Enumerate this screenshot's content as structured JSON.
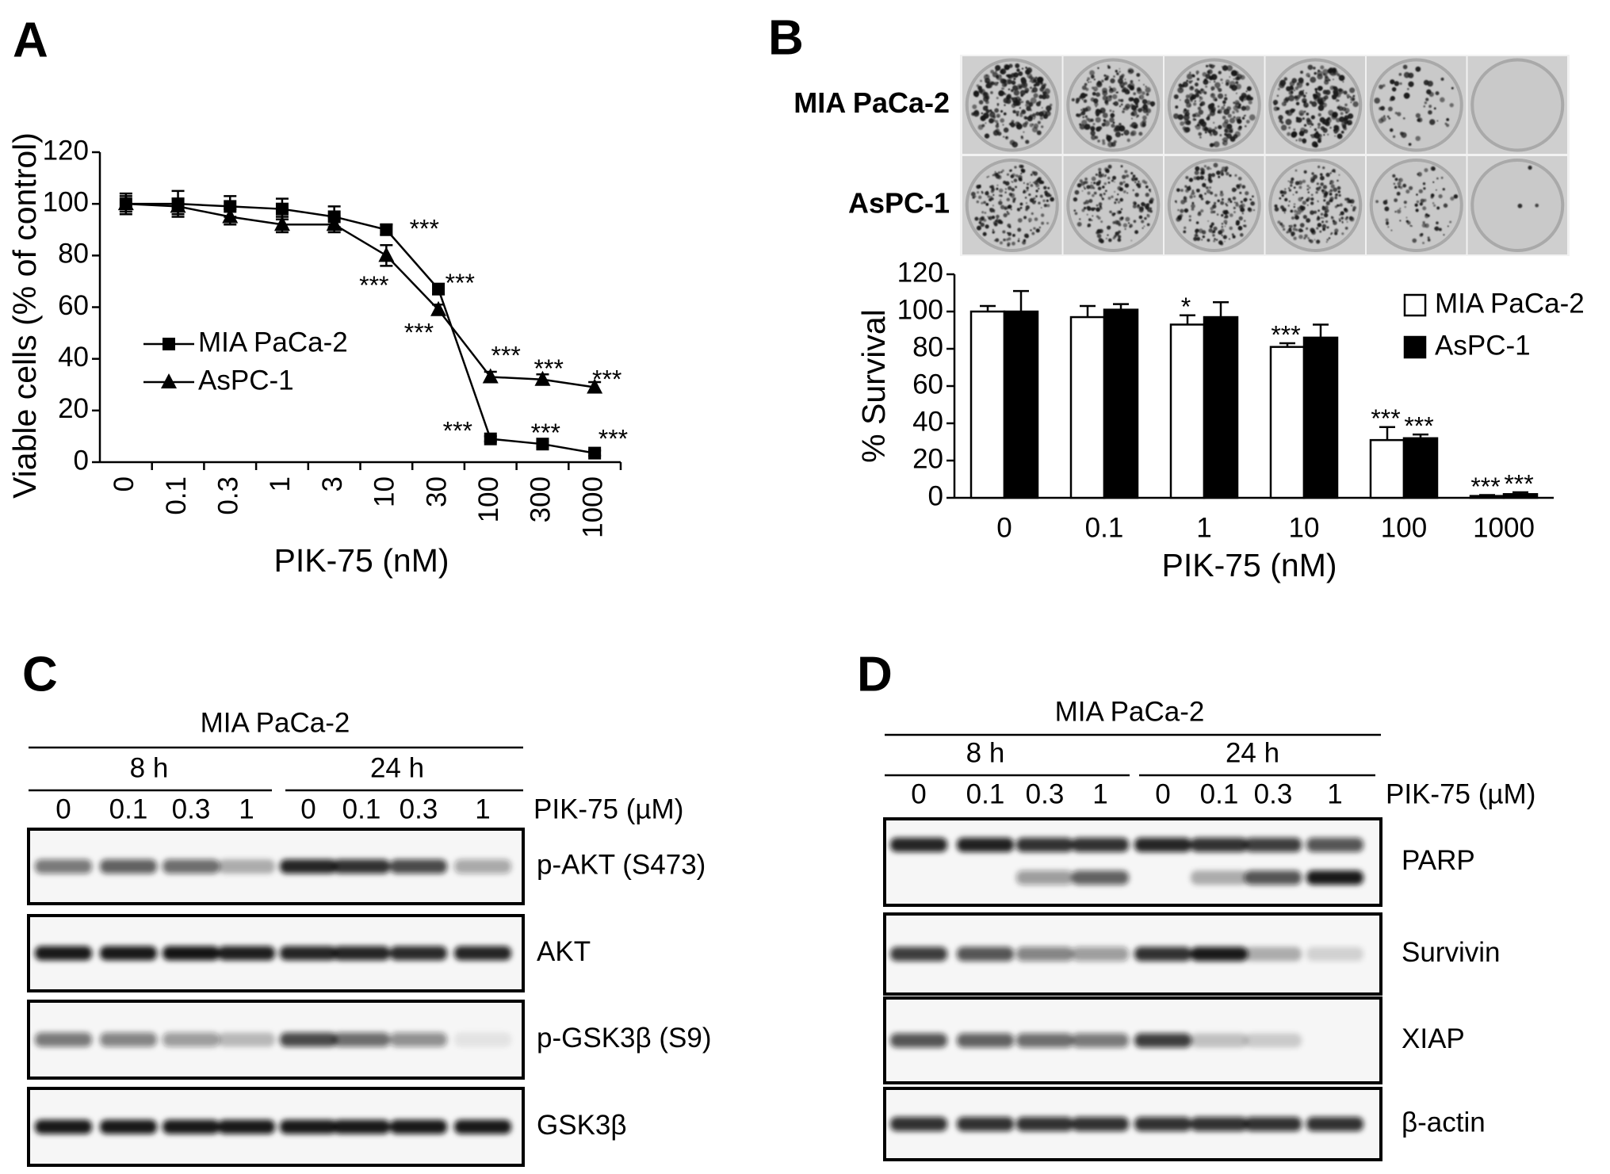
{
  "chart_data": [
    {
      "type": "line",
      "panel": "A",
      "xlabel": "PIK-75 (nM)",
      "ylabel": "Viable cells (% of control)",
      "categories": [
        "0",
        "0.1",
        "0.3",
        "1",
        "3",
        "10",
        "30",
        "100",
        "300",
        "1000"
      ],
      "ylim": [
        0,
        120
      ],
      "yticks": [
        0,
        20,
        40,
        60,
        80,
        100,
        120
      ],
      "grid": false,
      "legend": "center-left",
      "series": [
        {
          "name": "MIA PaCa-2",
          "color": "#000000",
          "marker": "square",
          "values": [
            100,
            100,
            99,
            98,
            95,
            90,
            67,
            9,
            7,
            3.5
          ],
          "errors": [
            4,
            5,
            4,
            4,
            4,
            2,
            2,
            1,
            1,
            1
          ],
          "significance": [
            null,
            null,
            null,
            null,
            null,
            "***",
            "***",
            "***",
            "***",
            "***"
          ]
        },
        {
          "name": "AsPC-1",
          "color": "#000000",
          "marker": "triangle",
          "values": [
            100,
            99,
            95,
            92,
            92,
            80,
            59,
            33,
            32,
            29
          ],
          "errors": [
            3,
            3,
            3,
            3,
            3,
            4,
            2,
            2,
            2,
            2
          ],
          "significance": [
            null,
            null,
            null,
            null,
            null,
            "***",
            "***",
            "***",
            "***",
            "***"
          ]
        }
      ]
    },
    {
      "type": "bar",
      "panel": "B",
      "xlabel": "PIK-75 (nM)",
      "ylabel": "% Survival",
      "plate_rows": [
        "MIA PaCa-2",
        "AsPC-1"
      ],
      "categories": [
        "0",
        "0.1",
        "1",
        "10",
        "100",
        "1000"
      ],
      "ylim": [
        0,
        120
      ],
      "yticks": [
        0,
        20,
        40,
        60,
        80,
        100,
        120
      ],
      "grid": false,
      "legend": "upper-right",
      "series": [
        {
          "name": "MIA PaCa-2",
          "color": "#ffffff",
          "values": [
            100,
            97,
            93,
            81,
            31,
            1
          ],
          "errors": [
            3,
            6,
            5,
            2,
            7,
            0.5
          ],
          "significance": [
            null,
            null,
            "*",
            "***",
            "***",
            "***"
          ]
        },
        {
          "name": "AsPC-1",
          "color": "#000000",
          "values": [
            100,
            101,
            97,
            86,
            32,
            2
          ],
          "errors": [
            11,
            3,
            8,
            7,
            2,
            1
          ],
          "significance": [
            null,
            null,
            null,
            null,
            "***",
            "***"
          ]
        }
      ]
    }
  ],
  "blots": [
    {
      "panel": "C",
      "cell_line": "MIA PaCa-2",
      "timepoints": [
        "8 h",
        "24 h"
      ],
      "doses": [
        "0",
        "0.1",
        "0.3",
        "1",
        "0",
        "0.1",
        "0.3",
        "1"
      ],
      "treatment": "PIK-75 (µM)",
      "proteins": [
        "p-AKT (S473)",
        "AKT",
        "p-GSK3β (S9)",
        "GSK3β"
      ]
    },
    {
      "panel": "D",
      "cell_line": "MIA PaCa-2",
      "timepoints": [
        "8 h",
        "24 h"
      ],
      "doses": [
        "0",
        "0.1",
        "0.3",
        "1",
        "0",
        "0.1",
        "0.3",
        "1"
      ],
      "treatment": "PIK-75 (µM)",
      "proteins": [
        "PARP",
        "Survivin",
        "XIAP",
        "β-actin"
      ]
    }
  ]
}
